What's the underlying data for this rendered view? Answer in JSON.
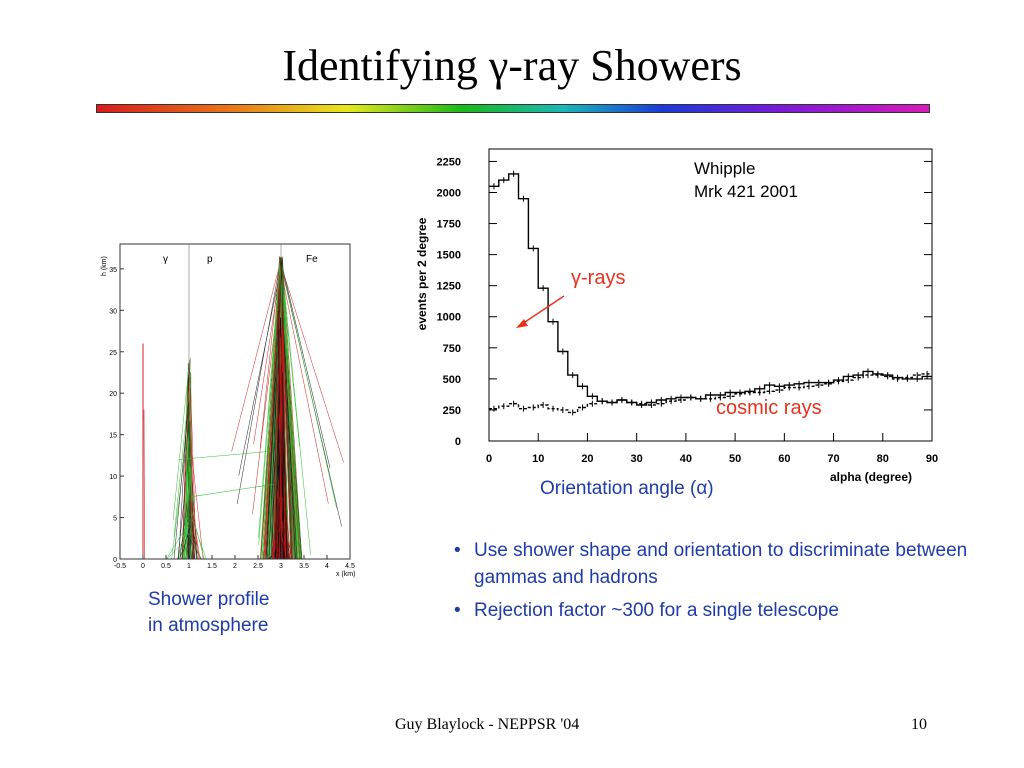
{
  "title": "Identifying γ-ray Showers",
  "shower_profile": {
    "caption_line1": "Shower profile",
    "caption_line2": "in atmosphere"
  },
  "alpha_plot_caption": "Orientation angle (α)",
  "bullets": [
    "Use shower shape and orientation to discriminate between gammas and hadrons",
    "Rejection factor ~300 for a single telescope"
  ],
  "footer": {
    "author": "Guy Blaylock - NEPPSR '04",
    "page_number": "10"
  },
  "colors": {
    "annotation": "#e8321e",
    "caption_blue": "#1f3ba8"
  },
  "chart_data": [
    {
      "type": "line",
      "title": "",
      "ylabel": "events per 2 degree",
      "xlabel": "alpha (degree)",
      "xlim": [
        0,
        90
      ],
      "ylim": [
        0,
        2350
      ],
      "xticks": [
        0,
        10,
        20,
        30,
        40,
        50,
        60,
        70,
        80,
        90
      ],
      "yticks": [
        0,
        250,
        500,
        750,
        1000,
        1250,
        1500,
        1750,
        2000,
        2250
      ],
      "annotations": {
        "source_line1": "Whipple",
        "source_line2": "Mrk 421 2001",
        "gamma_label": "γ-rays",
        "cosmic_label": "cosmic rays"
      },
      "grid": false,
      "series": [
        {
          "name": "",
          "style": "step-solid",
          "x": [
            1,
            3,
            5,
            7,
            9,
            11,
            13,
            15,
            17,
            19,
            21,
            23,
            25,
            27,
            29,
            31,
            33,
            35,
            37,
            39,
            41,
            43,
            45,
            47,
            49,
            51,
            53,
            55,
            57,
            59,
            61,
            63,
            65,
            67,
            69,
            71,
            73,
            75,
            77,
            79,
            81,
            83,
            85,
            87,
            89
          ],
          "values": [
            2050,
            2100,
            2150,
            1950,
            1550,
            1230,
            960,
            720,
            530,
            440,
            360,
            320,
            310,
            330,
            310,
            290,
            310,
            330,
            340,
            350,
            350,
            340,
            370,
            370,
            390,
            390,
            400,
            420,
            450,
            440,
            450,
            460,
            470,
            470,
            470,
            490,
            520,
            530,
            560,
            540,
            530,
            510,
            500,
            500,
            520
          ]
        },
        {
          "name": "",
          "style": "step-dashed",
          "x": [
            1,
            3,
            5,
            7,
            9,
            11,
            13,
            15,
            17,
            19,
            21,
            23,
            25,
            27,
            29,
            31,
            33,
            35,
            37,
            39,
            41,
            43,
            45,
            47,
            49,
            51,
            53,
            55,
            57,
            59,
            61,
            63,
            65,
            67,
            69,
            71,
            73,
            75,
            77,
            79,
            81,
            83,
            85,
            87,
            89
          ],
          "values": [
            260,
            280,
            300,
            260,
            270,
            290,
            260,
            250,
            230,
            270,
            300,
            320,
            310,
            330,
            310,
            300,
            290,
            300,
            320,
            330,
            350,
            340,
            340,
            350,
            360,
            380,
            390,
            390,
            400,
            410,
            430,
            430,
            440,
            450,
            460,
            480,
            490,
            510,
            530,
            530,
            520,
            500,
            510,
            530,
            540
          ]
        }
      ]
    },
    {
      "type": "scatter",
      "title": "",
      "ylabel": "h (km)",
      "xlabel": "x (km)",
      "xlim": [
        -0.5,
        4.5
      ],
      "ylim": [
        0,
        38
      ],
      "xticks": [
        "-0.5",
        "0",
        "0.5",
        "1",
        "1.5",
        "2",
        "2.5",
        "3",
        "3.5",
        "4",
        "4.5"
      ],
      "yticks": [
        0,
        5,
        10,
        15,
        20,
        25,
        30,
        35
      ],
      "showers": [
        {
          "label": "γ",
          "x": 0,
          "top_h": 26
        },
        {
          "label": "p",
          "x": 1,
          "top_h": 24.5
        },
        {
          "label": "Fe",
          "x": 3,
          "top_h": 36.5
        }
      ]
    }
  ]
}
